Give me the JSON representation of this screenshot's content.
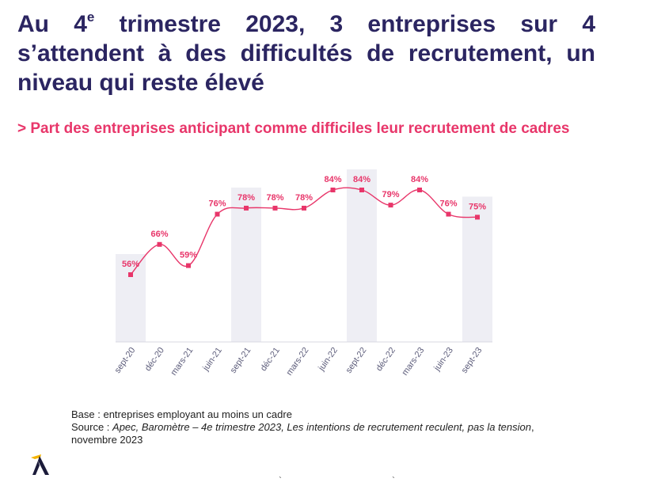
{
  "title": {
    "part1": "Au 4",
    "sup": "e",
    "part2": " trimestre 2023, 3 entreprises sur 4 s’attendent à des difficultés de recrutement, un niveau qui reste élevé"
  },
  "subtitle": "> Part des entreprises anticipant comme difficiles leur recrutement de cadres",
  "notes": {
    "base": "Base : entreprises employant au moins un cadre",
    "source_prefix": "Source : ",
    "source_italic": "Apec, Baromètre – 4e trimestre 2023, Les intentions de recrutement reculent, pas la tension",
    "source_suffix": ", novembre 2023"
  },
  "colors": {
    "title": "#2b2561",
    "accent": "#e8366a",
    "shading": "#eeeef4",
    "axis_label": "#5c5c7a"
  },
  "logo": {
    "icon": "apec-logo-icon"
  },
  "chart_data": {
    "type": "line",
    "categories": [
      "sept-20",
      "déc-20",
      "mars-21",
      "juin-21",
      "sept-21",
      "déc-21",
      "mars-22",
      "juin-22",
      "sept-22",
      "déc-22",
      "mars-23",
      "juin-23",
      "sept-23"
    ],
    "values": [
      56,
      66,
      59,
      76,
      78,
      78,
      78,
      84,
      84,
      79,
      84,
      76,
      75
    ],
    "labels": [
      "56%",
      "66%",
      "59%",
      "76%",
      "78%",
      "78%",
      "78%",
      "84%",
      "84%",
      "79%",
      "84%",
      "76%",
      "75%"
    ],
    "highlighted_categories": [
      "sept-20",
      "sept-21",
      "sept-22",
      "sept-23"
    ],
    "ylim": [
      40,
      90
    ],
    "grid": false,
    "legend": "none"
  }
}
